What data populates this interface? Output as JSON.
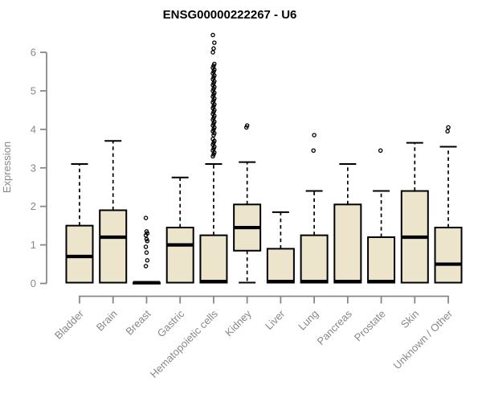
{
  "chart_data": {
    "type": "boxplot",
    "title": "ENSG00000222267 - U6",
    "ylabel": "Expression",
    "xlabel": "",
    "ylim": [
      0,
      6
    ],
    "yticks": [
      0,
      1,
      2,
      3,
      4,
      5,
      6
    ],
    "grid": false,
    "legend": false,
    "categories": [
      "Bladder",
      "Brain",
      "Breast",
      "Gastric",
      "Hematopoietic cells",
      "Kidney",
      "Liver",
      "Lung",
      "Pancreas",
      "Prostate",
      "Skin",
      "Unknown / Other"
    ],
    "boxes": [
      {
        "category": "Bladder",
        "low": 0.02,
        "q1": 0.02,
        "median": 0.7,
        "q3": 1.5,
        "high": 3.1,
        "outliers": []
      },
      {
        "category": "Brain",
        "low": 0.02,
        "q1": 0.02,
        "median": 1.2,
        "q3": 1.9,
        "high": 3.7,
        "outliers": []
      },
      {
        "category": "Breast",
        "low": 0.02,
        "q1": 0.02,
        "median": 0.02,
        "q3": 0.02,
        "high": 0.02,
        "outliers": [
          1.7,
          1.35,
          1.3,
          1.25,
          1.15,
          1.1,
          0.95,
          0.8,
          0.6,
          0.45
        ]
      },
      {
        "category": "Gastric",
        "low": 0.02,
        "q1": 0.02,
        "median": 1.0,
        "q3": 1.45,
        "high": 2.75,
        "outliers": []
      },
      {
        "category": "Hematopoietic cells",
        "low": 0.02,
        "q1": 0.02,
        "median": 0.05,
        "q3": 1.25,
        "high": 3.1,
        "outliers": [
          3.3,
          3.35,
          3.4,
          3.45,
          3.5,
          3.55,
          3.6,
          3.65,
          3.7,
          3.75,
          3.85,
          3.9,
          3.95,
          4.0,
          4.05,
          4.1,
          4.15,
          4.2,
          4.25,
          4.3,
          4.35,
          4.4,
          4.45,
          4.5,
          4.55,
          4.6,
          4.65,
          4.7,
          4.75,
          4.8,
          4.85,
          4.9,
          4.95,
          5.0,
          5.05,
          5.1,
          5.15,
          5.2,
          5.25,
          5.3,
          5.35,
          5.4,
          5.45,
          5.5,
          5.55,
          5.6,
          5.65,
          5.7,
          6.0,
          6.1,
          6.25,
          6.45
        ]
      },
      {
        "category": "Kidney",
        "low": 0.02,
        "q1": 0.85,
        "median": 1.45,
        "q3": 2.05,
        "high": 3.15,
        "outliers": [
          4.05,
          4.1
        ]
      },
      {
        "category": "Liver",
        "low": 0.02,
        "q1": 0.02,
        "median": 0.05,
        "q3": 0.9,
        "high": 1.85,
        "outliers": []
      },
      {
        "category": "Lung",
        "low": 0.02,
        "q1": 0.02,
        "median": 0.05,
        "q3": 1.25,
        "high": 2.4,
        "outliers": [
          3.45,
          3.85
        ]
      },
      {
        "category": "Pancreas",
        "low": 0.02,
        "q1": 0.02,
        "median": 0.05,
        "q3": 2.05,
        "high": 3.1,
        "outliers": []
      },
      {
        "category": "Prostate",
        "low": 0.02,
        "q1": 0.02,
        "median": 0.05,
        "q3": 1.2,
        "high": 2.4,
        "outliers": [
          3.45
        ]
      },
      {
        "category": "Skin",
        "low": 0.02,
        "q1": 0.02,
        "median": 1.2,
        "q3": 2.4,
        "high": 3.65,
        "outliers": []
      },
      {
        "category": "Unknown / Other",
        "low": 0.02,
        "q1": 0.02,
        "median": 0.5,
        "q3": 1.45,
        "high": 3.55,
        "outliers": [
          3.95,
          4.05
        ]
      }
    ],
    "colors": {
      "box_fill": "#ece5cc",
      "box_stroke": "#000000",
      "median": "#000000",
      "whisker": "#000000",
      "outlier": "#000000",
      "axis": "#888888",
      "tick_label": "#888888",
      "title": "#000000",
      "background": "#ffffff"
    }
  }
}
